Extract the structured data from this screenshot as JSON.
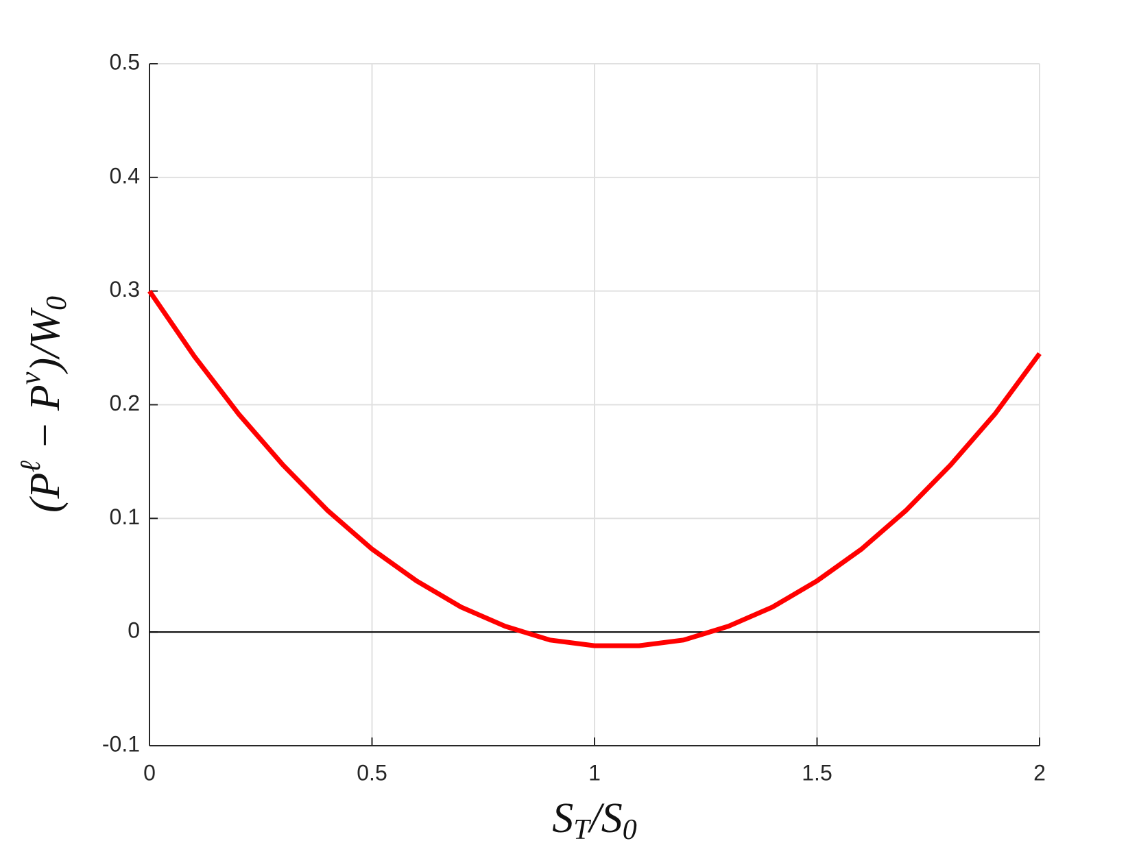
{
  "chart_data": {
    "type": "line",
    "x_label": [
      {
        "text": "S"
      },
      {
        "sub": "T"
      },
      {
        "text": "/S"
      },
      {
        "sub": "0"
      }
    ],
    "y_label": [
      {
        "text": "(P"
      },
      {
        "sup": "ℓ"
      },
      {
        "text": " − P"
      },
      {
        "sup": "v"
      },
      {
        "text": ")/W"
      },
      {
        "sub": "0"
      }
    ],
    "x": [
      0,
      0.1,
      0.2,
      0.3,
      0.4,
      0.5,
      0.6,
      0.7,
      0.8,
      0.9,
      1.0,
      1.1,
      1.2,
      1.3,
      1.4,
      1.5,
      1.6,
      1.7,
      1.8,
      1.9,
      2.0
    ],
    "series": [
      {
        "color": "#ff0000",
        "values": [
          0.3,
          0.243,
          0.192,
          0.147,
          0.107,
          0.073,
          0.045,
          0.022,
          0.005,
          -0.007,
          -0.012,
          -0.012,
          -0.007,
          0.005,
          0.022,
          0.045,
          0.073,
          0.107,
          0.147,
          0.192,
          0.245
        ]
      }
    ],
    "reference_line": {
      "value": 0,
      "color": "#000000"
    },
    "xlim": [
      0,
      2
    ],
    "ylim": [
      -0.1,
      0.5
    ],
    "xticks": [
      0,
      0.5,
      1,
      1.5,
      2
    ],
    "yticks": [
      -0.1,
      0,
      0.1,
      0.2,
      0.3,
      0.4,
      0.5
    ],
    "grid": true
  }
}
